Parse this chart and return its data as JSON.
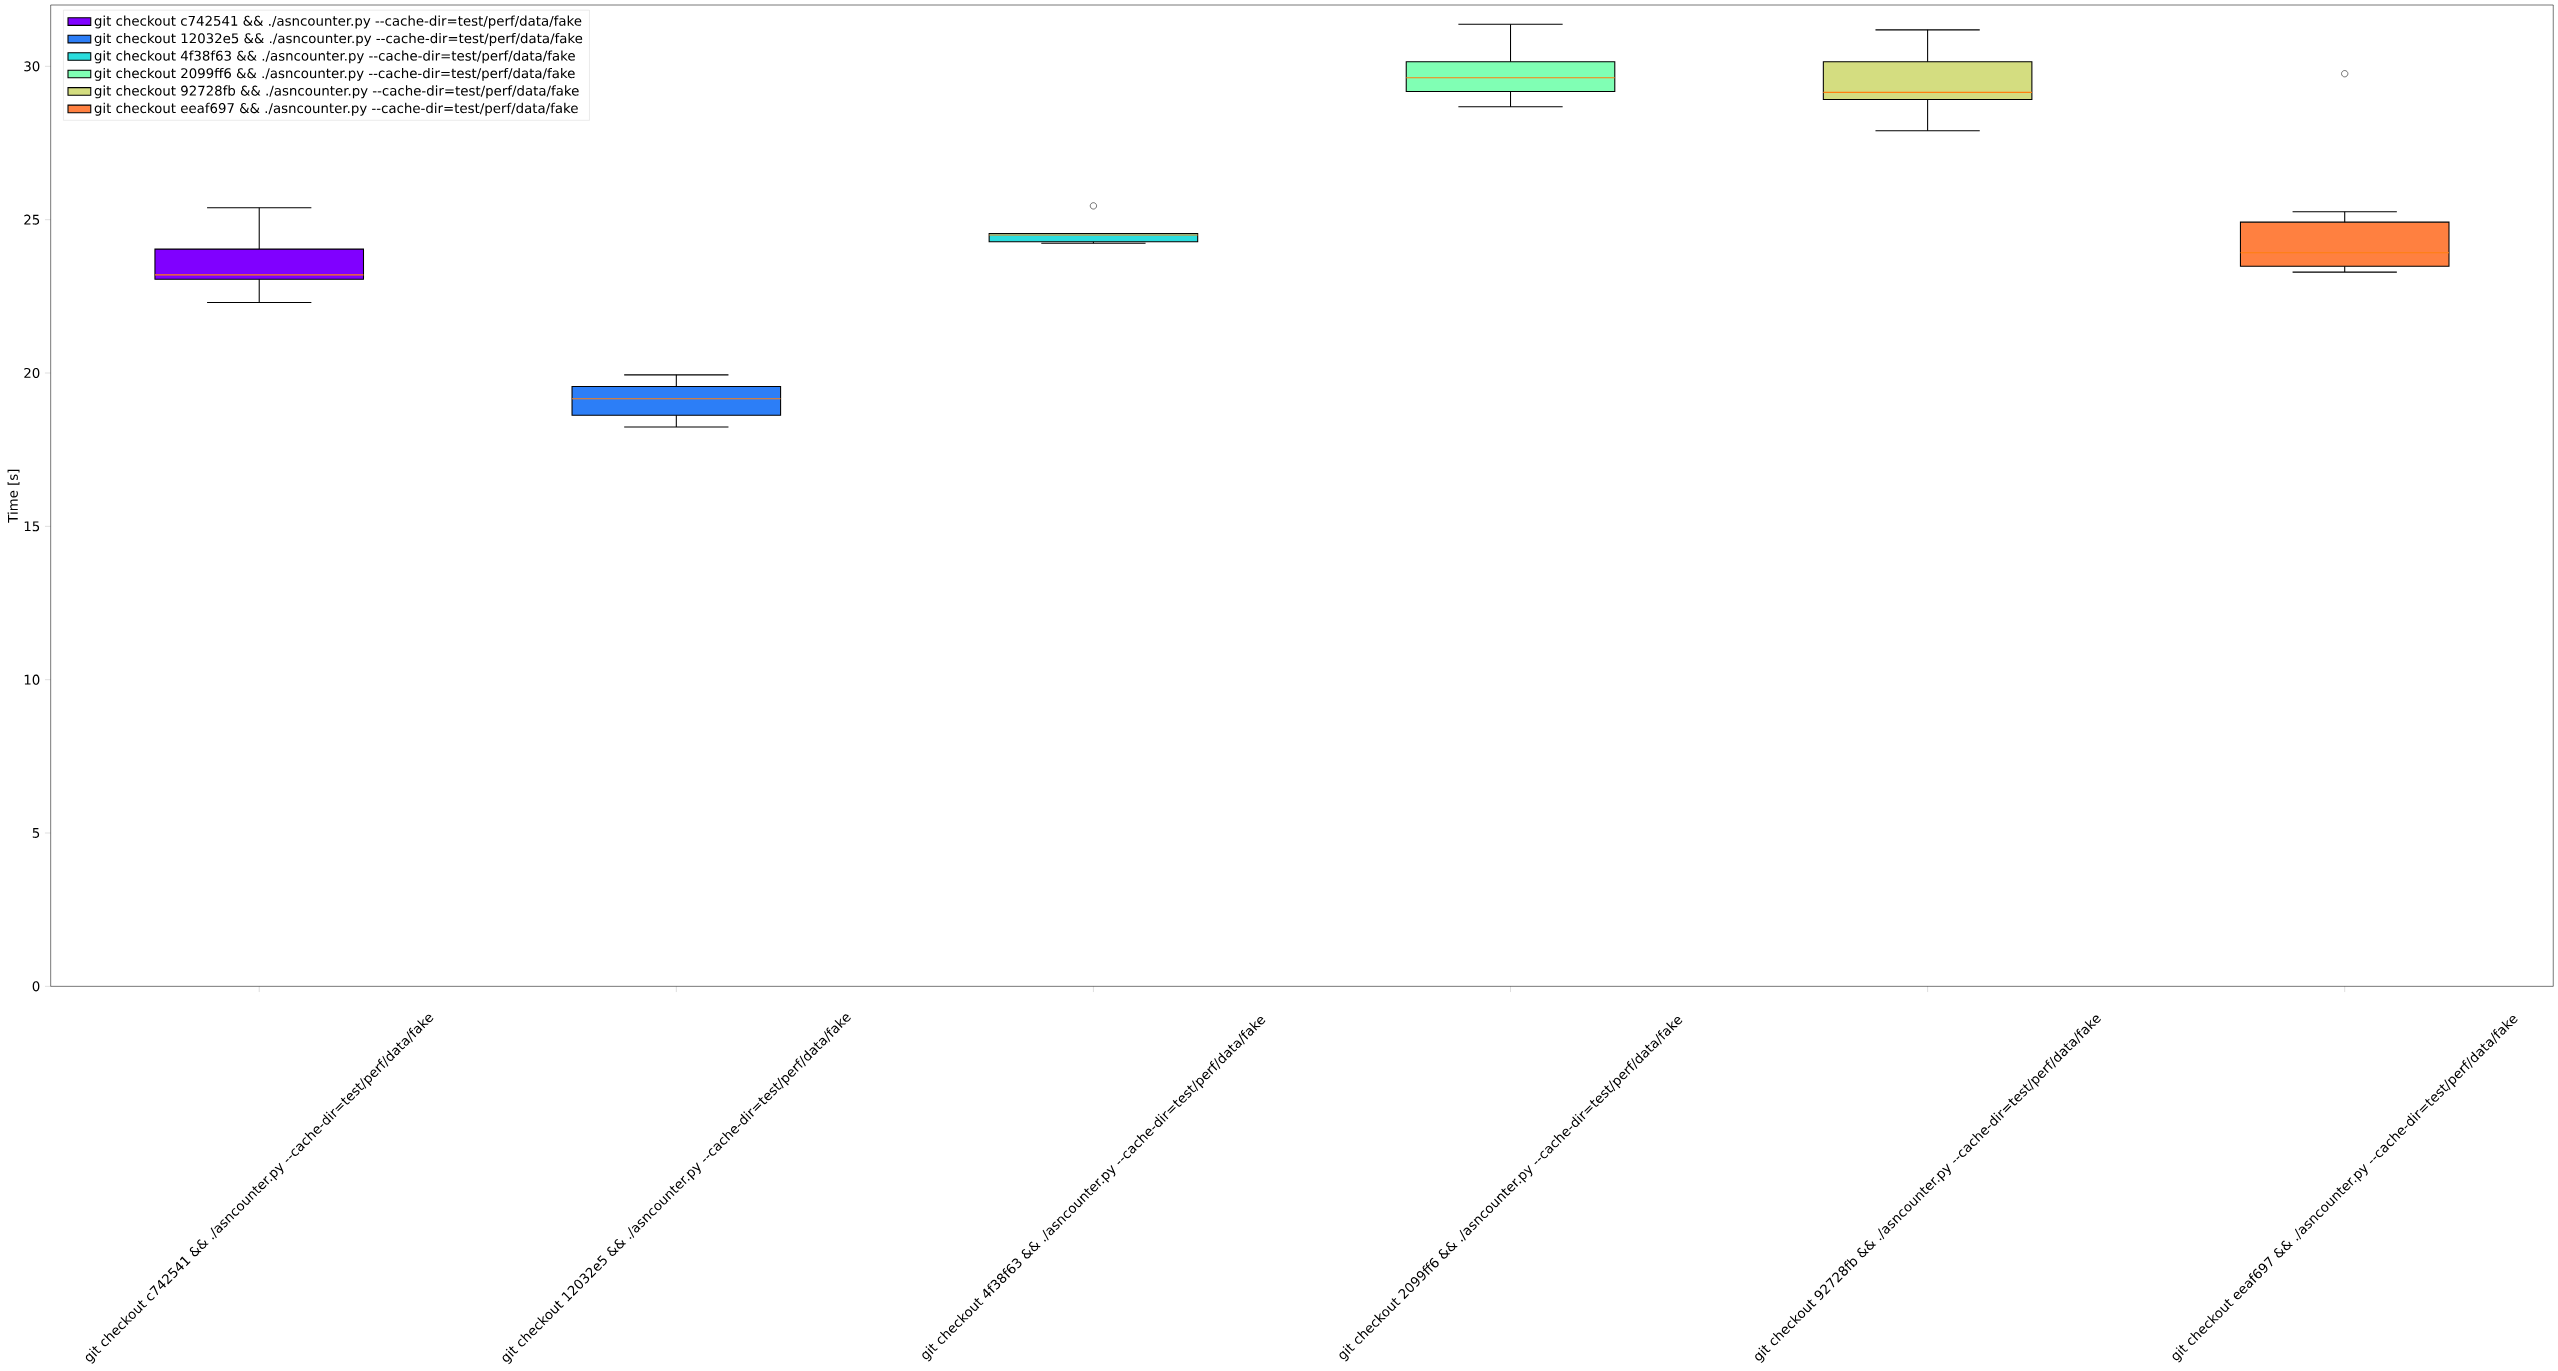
{
  "chart_data": {
    "type": "box",
    "ylabel": "Time [s]",
    "categories": [
      "git checkout c742541 && ./asncounter.py --cache-dir=test/perf/data/fake",
      "git checkout 12032e5 && ./asncounter.py --cache-dir=test/perf/data/fake",
      "git checkout 4f38f63 && ./asncounter.py --cache-dir=test/perf/data/fake",
      "git checkout 2099ff6 && ./asncounter.py --cache-dir=test/perf/data/fake",
      "git checkout 92728fb && ./asncounter.py --cache-dir=test/perf/data/fake",
      "git checkout eeaf697 && ./asncounter.py --cache-dir=test/perf/data/fake"
    ],
    "series": [
      {
        "name": "git checkout c742541 && ./asncounter.py --cache-dir=test/perf/data/fake",
        "color": "#8000ff",
        "boxes": [
          {
            "low": 22.3,
            "q1": 23.06,
            "median": 23.2,
            "q3": 24.04,
            "high": 25.39
          },
          null,
          null,
          null,
          null,
          null
        ]
      },
      {
        "name": "git checkout 12032e5 && ./asncounter.py --cache-dir=test/perf/data/fake",
        "color": "#2c7ef7",
        "boxes": [
          null,
          {
            "low": 18.24,
            "q1": 18.62,
            "median": 19.16,
            "q3": 19.56,
            "high": 19.94
          },
          null,
          null,
          null,
          null
        ]
      },
      {
        "name": "git checkout 4f38f63 && ./asncounter.py --cache-dir=test/perf/data/fake",
        "color": "#2adddd",
        "boxes": [
          null,
          null,
          {
            "low": 24.23,
            "q1": 24.28,
            "median": 24.5,
            "q3": 24.55,
            "high": 24.55,
            "outliers": [
              25.45
            ]
          },
          null,
          null,
          null
        ]
      },
      {
        "name": "git checkout 2099ff6 && ./asncounter.py --cache-dir=test/perf/data/fake",
        "color": "#80ffb4",
        "boxes": [
          null,
          null,
          null,
          {
            "low": 28.68,
            "q1": 29.18,
            "median": 29.63,
            "q3": 30.15,
            "high": 31.37
          },
          null,
          null
        ]
      },
      {
        "name": "git checkout 92728fb && ./asncounter.py --cache-dir=test/perf/data/fake",
        "color": "#d4dd80",
        "boxes": [
          null,
          null,
          null,
          null,
          {
            "low": 27.9,
            "q1": 28.92,
            "median": 29.15,
            "q3": 30.15,
            "high": 31.19
          },
          null
        ]
      },
      {
        "name": "git checkout eeaf697 && ./asncounter.py --cache-dir=test/perf/data/fake",
        "color": "#ff8040",
        "boxes": [
          null,
          null,
          null,
          null,
          null,
          {
            "low": 23.29,
            "q1": 23.48,
            "median": 23.92,
            "q3": 24.92,
            "high": 25.26,
            "outliers": [
              29.76
            ]
          }
        ]
      }
    ],
    "ylim": [
      0,
      32
    ],
    "yticks": [
      0,
      5,
      10,
      15,
      20,
      25,
      30
    ],
    "legend": "top left"
  }
}
